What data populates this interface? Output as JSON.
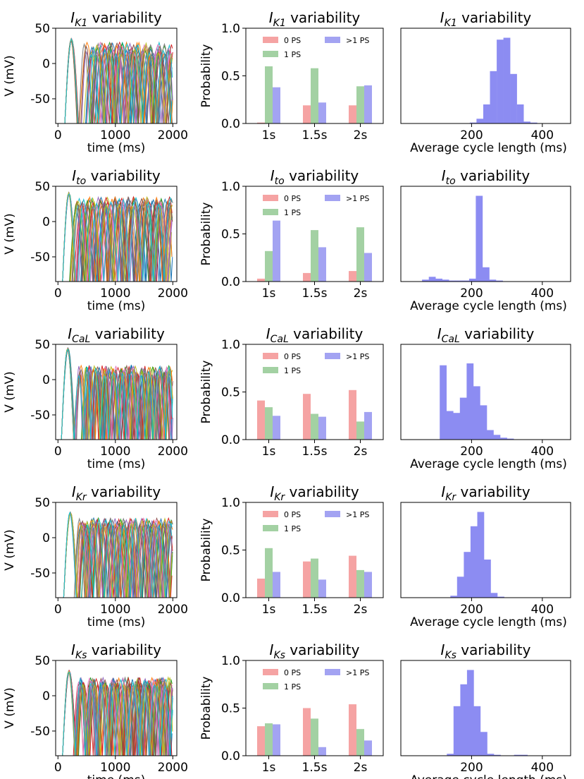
{
  "figure": {
    "rows": [
      {
        "current_main": "I",
        "current_sub": "K1",
        "title_suffix": "variability"
      },
      {
        "current_main": "I",
        "current_sub": "to",
        "title_suffix": "variability"
      },
      {
        "current_main": "I",
        "current_sub": "CaL",
        "title_suffix": "variability"
      },
      {
        "current_main": "I",
        "current_sub": "Kr",
        "title_suffix": "variability"
      },
      {
        "current_main": "I",
        "current_sub": "Ks",
        "title_suffix": "variability"
      }
    ]
  },
  "chart_data": [
    {
      "type": "line",
      "row": 0,
      "title": "I_K1 variability",
      "xlabel": "time (ms)",
      "ylabel": "V (mV)",
      "xlim": [
        -40,
        2070
      ],
      "ylim": [
        -85,
        50
      ],
      "xticks": [
        0,
        1000,
        2000
      ],
      "yticks": [
        50,
        0,
        -50
      ],
      "series_count": 20,
      "first_onset_range": [
        350,
        700
      ],
      "onset": 120,
      "cycle_range": [
        160,
        270
      ],
      "min_v": -85,
      "peak_range": [
        12,
        30
      ],
      "initial_peak": 32
    },
    {
      "type": "bar",
      "row": 0,
      "title": "I_K1 variability",
      "ylabel": "Probability",
      "categories": [
        "1s",
        "1.5s",
        "2s"
      ],
      "ylim": [
        0,
        1.0
      ],
      "yticks": [
        0.0,
        0.5,
        1.0
      ],
      "legend_position": "top",
      "series": [
        {
          "name": "0 PS",
          "color": "#f5a3a3",
          "values": [
            0.01,
            0.19,
            0.19
          ]
        },
        {
          "name": "1 PS",
          "color": "#a3d1a3",
          "values": [
            0.6,
            0.58,
            0.39
          ]
        },
        {
          "name": ">1 PS",
          "color": "#a3a3f2",
          "values": [
            0.38,
            0.22,
            0.4
          ]
        }
      ]
    },
    {
      "type": "histogram",
      "row": 0,
      "title": "I_K1 variability",
      "xlabel": "Average cycle length (ms)",
      "xlim": [
        0,
        480
      ],
      "ylim": [
        0,
        1
      ],
      "xticks": [
        200,
        400
      ],
      "bin_start": 100,
      "bin_width": 19,
      "frequencies": [
        0,
        0,
        0,
        0,
        0,
        0.01,
        0.05,
        0.2,
        0.55,
        0.88,
        0.9,
        0.52,
        0.2,
        0.02,
        0.01,
        0,
        0,
        0,
        0,
        0,
        0
      ],
      "color": "#8c8cf2"
    },
    {
      "type": "line",
      "row": 1,
      "title": "I_to variability",
      "xlabel": "time (ms)",
      "ylabel": "V (mV)",
      "xlim": [
        -40,
        2070
      ],
      "ylim": [
        -85,
        50
      ],
      "xticks": [
        0,
        1000,
        2000
      ],
      "yticks": [
        50,
        0,
        -50
      ],
      "series_count": 20,
      "first_onset_range": [
        200,
        420
      ],
      "onset": 80,
      "cycle_range": [
        180,
        270
      ],
      "min_v": -85,
      "peak_range": [
        20,
        35
      ],
      "initial_peak": 38
    },
    {
      "type": "bar",
      "row": 1,
      "title": "I_to variability",
      "ylabel": "Probability",
      "categories": [
        "1s",
        "1.5s",
        "2s"
      ],
      "ylim": [
        0,
        1.0
      ],
      "yticks": [
        0.0,
        0.5,
        1.0
      ],
      "legend_position": "top",
      "series": [
        {
          "name": "0 PS",
          "color": "#f5a3a3",
          "values": [
            0.03,
            0.09,
            0.11
          ]
        },
        {
          "name": "1 PS",
          "color": "#a3d1a3",
          "values": [
            0.32,
            0.54,
            0.57
          ]
        },
        {
          "name": ">1 PS",
          "color": "#a3a3f2",
          "values": [
            0.64,
            0.36,
            0.3
          ]
        }
      ]
    },
    {
      "type": "histogram",
      "row": 1,
      "title": "I_to variability",
      "xlabel": "Average cycle length (ms)",
      "xlim": [
        0,
        480
      ],
      "ylim": [
        0,
        1
      ],
      "xticks": [
        200,
        400
      ],
      "bin_start": 60,
      "bin_width": 19,
      "frequencies": [
        0.02,
        0.05,
        0.03,
        0.02,
        0.01,
        0.01,
        0.01,
        0.03,
        0.9,
        0.15,
        0.02,
        0.01,
        0,
        0,
        0,
        0,
        0,
        0,
        0,
        0,
        0
      ],
      "color": "#8c8cf2"
    },
    {
      "type": "line",
      "row": 2,
      "title": "I_CaL variability",
      "xlabel": "time (ms)",
      "ylabel": "V (mV)",
      "xlim": [
        -40,
        2070
      ],
      "ylim": [
        -85,
        50
      ],
      "xticks": [
        0,
        1000,
        2000
      ],
      "yticks": [
        50,
        0,
        -50
      ],
      "series_count": 20,
      "first_onset_range": [
        260,
        520
      ],
      "onset": 60,
      "cycle_range": [
        100,
        240
      ],
      "min_v": -85,
      "peak_range": [
        5,
        20
      ],
      "initial_peak": 42
    },
    {
      "type": "bar",
      "row": 2,
      "title": "I_CaL variability",
      "ylabel": "Probability",
      "categories": [
        "1s",
        "1.5s",
        "2s"
      ],
      "ylim": [
        0,
        1.0
      ],
      "yticks": [
        0.0,
        0.5,
        1.0
      ],
      "legend_position": "top",
      "series": [
        {
          "name": "0 PS",
          "color": "#f5a3a3",
          "values": [
            0.41,
            0.48,
            0.52
          ]
        },
        {
          "name": "1 PS",
          "color": "#a3d1a3",
          "values": [
            0.34,
            0.27,
            0.19
          ]
        },
        {
          "name": ">1 PS",
          "color": "#a3a3f2",
          "values": [
            0.25,
            0.24,
            0.29
          ]
        }
      ]
    },
    {
      "type": "histogram",
      "row": 2,
      "title": "I_CaL variability",
      "xlabel": "Average cycle length (ms)",
      "xlim": [
        0,
        480
      ],
      "ylim": [
        0,
        1
      ],
      "xticks": [
        200,
        400
      ],
      "bin_start": 110,
      "bin_width": 19,
      "frequencies": [
        0.78,
        0.3,
        0.28,
        0.44,
        0.8,
        0.56,
        0.36,
        0.1,
        0.05,
        0.02,
        0.01,
        0,
        0,
        0,
        0,
        0,
        0,
        0,
        0,
        0,
        0
      ],
      "color": "#8c8cf2"
    },
    {
      "type": "line",
      "row": 3,
      "title": "I_Kr variability",
      "xlabel": "time (ms)",
      "ylabel": "V (mV)",
      "xlim": [
        -40,
        2070
      ],
      "ylim": [
        -85,
        50
      ],
      "xticks": [
        0,
        1000,
        2000
      ],
      "yticks": [
        50,
        0,
        -50
      ],
      "series_count": 20,
      "first_onset_range": [
        280,
        420
      ],
      "onset": 100,
      "cycle_range": [
        170,
        240
      ],
      "min_v": -85,
      "peak_range": [
        15,
        28
      ],
      "initial_peak": 33
    },
    {
      "type": "bar",
      "row": 3,
      "title": "I_Kr variability",
      "ylabel": "Probability",
      "categories": [
        "1s",
        "1.5s",
        "2s"
      ],
      "ylim": [
        0,
        1.0
      ],
      "yticks": [
        0.0,
        0.5,
        1.0
      ],
      "legend_position": "top",
      "series": [
        {
          "name": "0 PS",
          "color": "#f5a3a3",
          "values": [
            0.2,
            0.38,
            0.44
          ]
        },
        {
          "name": "1 PS",
          "color": "#a3d1a3",
          "values": [
            0.52,
            0.41,
            0.29
          ]
        },
        {
          "name": ">1 PS",
          "color": "#a3a3f2",
          "values": [
            0.27,
            0.19,
            0.27
          ]
        }
      ]
    },
    {
      "type": "histogram",
      "row": 3,
      "title": "I_Kr variability",
      "xlabel": "Average cycle length (ms)",
      "xlim": [
        0,
        480
      ],
      "ylim": [
        0,
        1
      ],
      "xticks": [
        200,
        400
      ],
      "bin_start": 140,
      "bin_width": 19,
      "frequencies": [
        0.02,
        0.22,
        0.48,
        0.75,
        0.9,
        0.4,
        0.05,
        0.01,
        0,
        0,
        0,
        0,
        0,
        0,
        0,
        0,
        0,
        0,
        0,
        0,
        0
      ],
      "color": "#8c8cf2"
    },
    {
      "type": "line",
      "row": 4,
      "title": "I_Ks variability",
      "xlabel": "time (ms)",
      "ylabel": "V (mV)",
      "xlim": [
        -40,
        2070
      ],
      "ylim": [
        -85,
        50
      ],
      "xticks": [
        0,
        1000,
        2000
      ],
      "yticks": [
        50,
        0,
        -50
      ],
      "series_count": 20,
      "first_onset_range": [
        260,
        360
      ],
      "onset": 80,
      "cycle_range": [
        150,
        220
      ],
      "min_v": -85,
      "peak_range": [
        12,
        26
      ],
      "initial_peak": 33
    },
    {
      "type": "bar",
      "row": 4,
      "title": "I_Ks variability",
      "ylabel": "Probability",
      "categories": [
        "1s",
        "1.5s",
        "2s"
      ],
      "ylim": [
        0,
        1.0
      ],
      "yticks": [
        0.0,
        0.5,
        1.0
      ],
      "legend_position": "top",
      "series": [
        {
          "name": "0 PS",
          "color": "#f5a3a3",
          "values": [
            0.31,
            0.5,
            0.54
          ]
        },
        {
          "name": "1 PS",
          "color": "#a3d1a3",
          "values": [
            0.34,
            0.39,
            0.28
          ]
        },
        {
          "name": ">1 PS",
          "color": "#a3a3f2",
          "values": [
            0.33,
            0.09,
            0.16
          ]
        }
      ]
    },
    {
      "type": "histogram",
      "row": 4,
      "title": "I_Ks variability",
      "xlabel": "Average cycle length (ms)",
      "xlim": [
        0,
        480
      ],
      "ylim": [
        0,
        1
      ],
      "xticks": [
        200,
        400
      ],
      "bin_start": 130,
      "bin_width": 19,
      "frequencies": [
        0.02,
        0.52,
        0.75,
        0.9,
        0.52,
        0.25,
        0.02,
        0.01,
        0,
        0,
        0.01,
        0.01,
        0,
        0,
        0,
        0,
        0,
        0,
        0,
        0,
        0
      ],
      "color": "#8c8cf2"
    }
  ]
}
